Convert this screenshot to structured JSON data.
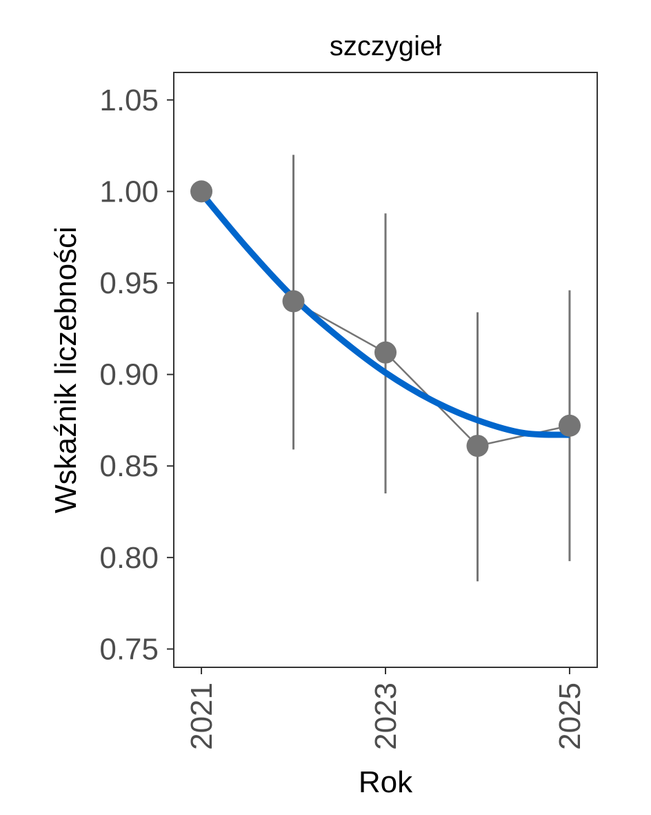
{
  "chart_data": {
    "type": "line",
    "title": "szczygieł",
    "xlabel": "Rok",
    "ylabel": "Wskaźnik liczebności",
    "xlim": [
      2020.7,
      2025.3
    ],
    "ylim": [
      0.74,
      1.065
    ],
    "x_ticks": [
      2021,
      2023,
      2025
    ],
    "y_ticks": [
      0.75,
      0.8,
      0.85,
      0.9,
      0.95,
      1.0,
      1.05
    ],
    "y_tick_labels": [
      "0.75",
      "0.80",
      "0.85",
      "0.90",
      "0.95",
      "1.00",
      "1.05"
    ],
    "x_tick_labels": [
      "2021",
      "2023",
      "2025"
    ],
    "grid": false,
    "series": [
      {
        "kind": "points_with_errorbars",
        "color": "#757575",
        "x": [
          2021,
          2022,
          2023,
          2024,
          2025
        ],
        "y": [
          1.0,
          0.94,
          0.912,
          0.861,
          0.872
        ],
        "lower": [
          1.0,
          0.859,
          0.835,
          0.787,
          0.798
        ],
        "upper": [
          1.0,
          1.02,
          0.988,
          0.934,
          0.946
        ]
      },
      {
        "kind": "smooth_trend",
        "color": "#0066cc",
        "x": [
          2021,
          2021.5,
          2022,
          2022.5,
          2023,
          2023.5,
          2024,
          2024.5,
          2025
        ],
        "y": [
          0.999,
          0.969,
          0.942,
          0.92,
          0.901,
          0.886,
          0.875,
          0.868,
          0.867
        ]
      }
    ]
  }
}
